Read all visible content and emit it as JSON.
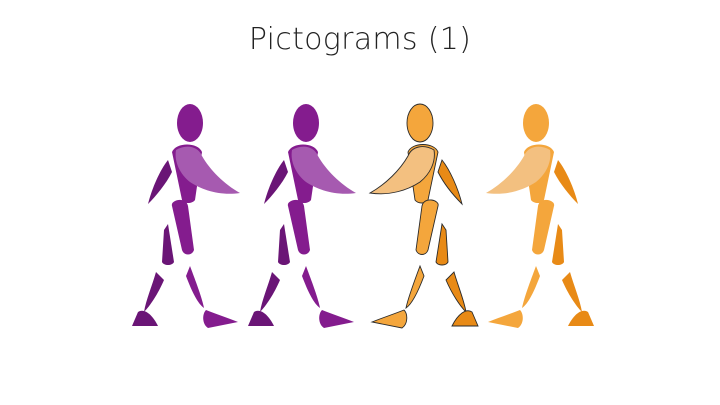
{
  "slide": {
    "title": "Pictograms (1)"
  },
  "colors": {
    "purple_main": "#841C8E",
    "purple_dark": "#6A1576",
    "purple_light": "#A65AB0",
    "orange_main": "#F4A63C",
    "orange_dark": "#E88A16",
    "orange_light": "#F3C080",
    "outline": "#2b2b2b"
  },
  "figures": [
    {
      "name": "purple-figure-1",
      "color": "purple",
      "outlined": false
    },
    {
      "name": "purple-figure-2",
      "color": "purple",
      "outlined": false
    },
    {
      "name": "orange-figure-3",
      "color": "orange",
      "outlined": true
    },
    {
      "name": "orange-figure-4",
      "color": "orange",
      "outlined": false
    }
  ]
}
